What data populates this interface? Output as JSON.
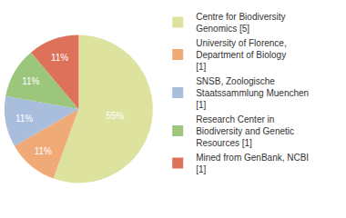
{
  "chart_data": {
    "type": "pie",
    "categories": [
      "Centre for Biodiversity Genomics [5]",
      "University of Florence, Department of Biology [1]",
      "SNSB, Zoologische Staatssammlung Muenchen [1]",
      "Research Center in Biodiversity and Genetic Resources [1]",
      "Mined from GenBank, NCBI [1]"
    ],
    "values": [
      55,
      11,
      11,
      11,
      11
    ],
    "value_labels": [
      "55%",
      "11%",
      "11%",
      "11%",
      "11%"
    ],
    "colors": [
      "#dde29f",
      "#f0aa78",
      "#a9bddc",
      "#9dc67d",
      "#dd7159"
    ],
    "data_labels": true,
    "legend": "right"
  }
}
